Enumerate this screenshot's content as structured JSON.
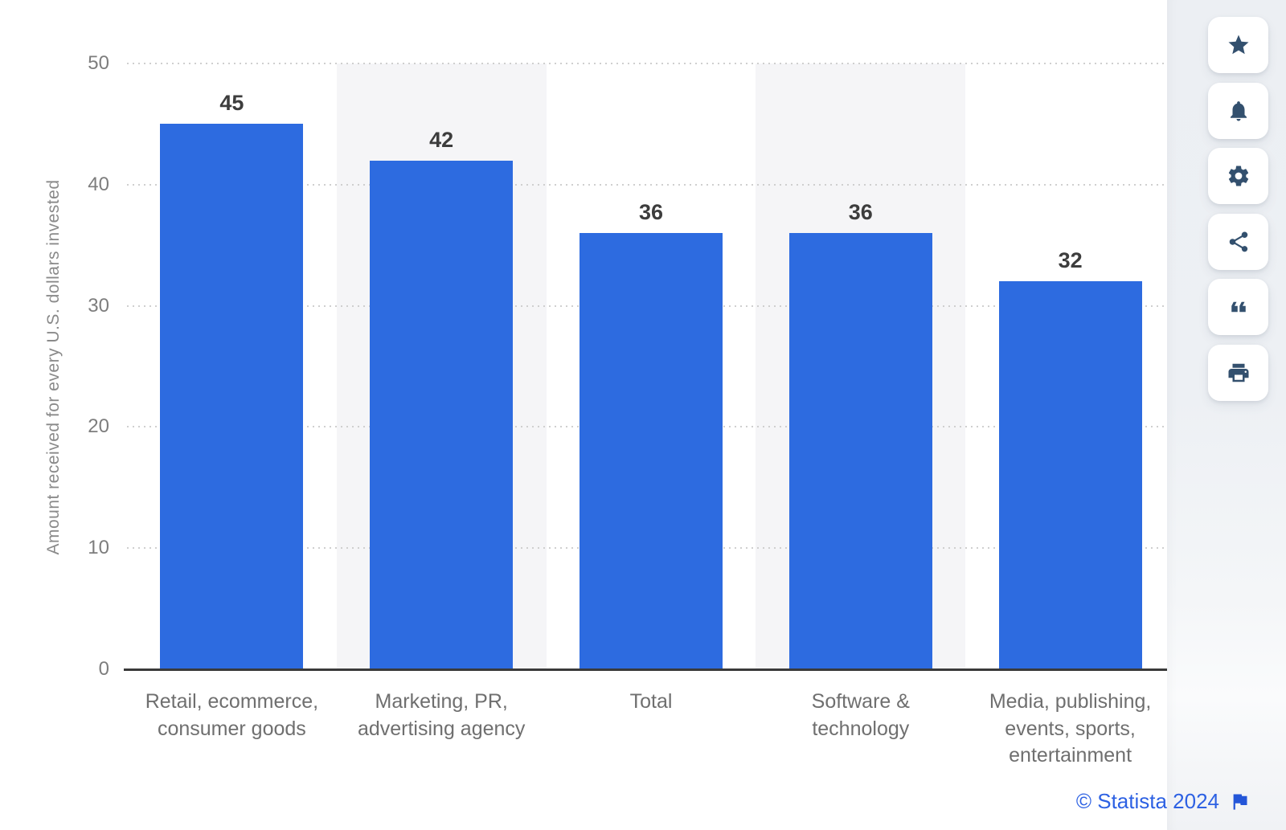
{
  "chart_data": {
    "type": "bar",
    "title": "",
    "categories": [
      "Retail, ecommerce, consumer goods",
      "Marketing, PR, advertising agency",
      "Total",
      "Software & technology",
      "Media, publishing, events, sports, entertainment"
    ],
    "values": [
      45,
      42,
      36,
      36,
      32
    ],
    "xlabel": "",
    "ylabel": "Amount received for every U.S. dollars invested",
    "ylim": [
      0,
      50
    ],
    "yticks": [
      0,
      10,
      20,
      30,
      40,
      50
    ],
    "grid": "horizontal-dotted",
    "legend": "none",
    "bar_color": "#2d6be0",
    "band_color": "#f5f5f7",
    "value_label_color": "#3d3d3d",
    "shaded_category_indexes": [
      1,
      3
    ]
  },
  "toolbar": {
    "buttons": [
      {
        "id": "favorite",
        "icon": "star-icon"
      },
      {
        "id": "notifications",
        "icon": "bell-icon"
      },
      {
        "id": "settings",
        "icon": "gear-icon"
      },
      {
        "id": "share",
        "icon": "share-icon"
      },
      {
        "id": "cite",
        "icon": "quote-icon"
      },
      {
        "id": "print",
        "icon": "print-icon"
      }
    ]
  },
  "footer": {
    "copyright": "© Statista 2024",
    "flag_icon": "flag-icon",
    "link_color": "#2d61e3"
  }
}
